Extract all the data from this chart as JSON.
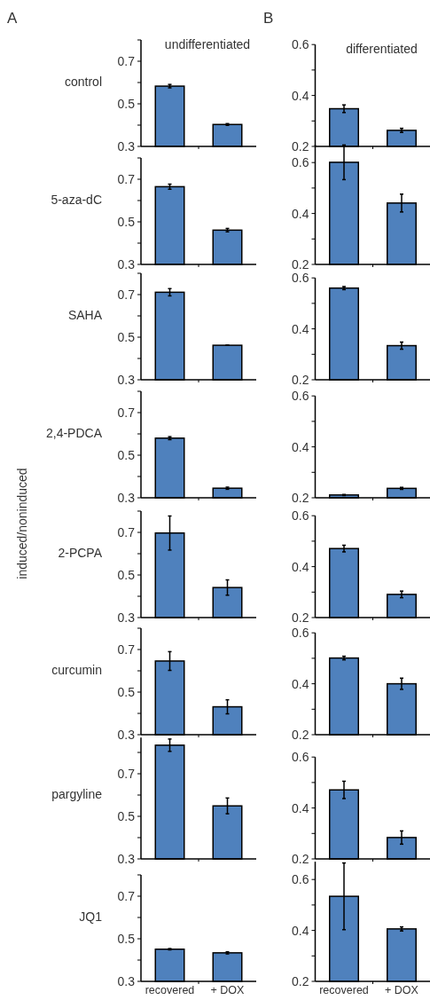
{
  "chart_data": [
    {
      "type": "bar",
      "title": "control",
      "annotations": [
        "A",
        "undifferentiated"
      ],
      "categories": [
        null,
        null
      ],
      "values": [
        0.583,
        0.403
      ],
      "errors": [
        0.008,
        0.004
      ],
      "color": "#4f81bd",
      "ylim": [
        0.3,
        0.8
      ],
      "yticks": [
        0.3,
        {
          "value": 0.4,
          "label": null
        },
        0.5,
        {
          "value": 0.6,
          "label": null
        },
        0.7,
        {
          "value": 0.8,
          "label": null
        }
      ]
    },
    {
      "type": "bar",
      "annotations": [
        "B",
        "differentiated"
      ],
      "categories": [
        null,
        null
      ],
      "values": [
        0.348,
        0.263
      ],
      "errors": [
        0.015,
        0.008
      ],
      "color": "#4f81bd",
      "ylim": [
        0.2,
        0.6
      ],
      "yticks": [
        0.2,
        {
          "value": 0.3,
          "label": null
        },
        0.4,
        {
          "value": 0.5,
          "label": null
        },
        0.6
      ]
    },
    {
      "type": "bar",
      "title": "5-aza-dC",
      "categories": [
        null,
        null
      ],
      "values": [
        0.665,
        0.461
      ],
      "errors": [
        0.012,
        0.008
      ],
      "color": "#4f81bd",
      "ylim": [
        0.3,
        0.8
      ],
      "yticks": [
        0.3,
        {
          "value": 0.4,
          "label": null
        },
        0.5,
        {
          "value": 0.6,
          "label": null
        },
        0.7,
        {
          "value": 0.8,
          "label": null
        }
      ]
    },
    {
      "type": "bar",
      "categories": [
        null,
        null
      ],
      "values": [
        0.601,
        0.441
      ],
      "errors": [
        0.068,
        0.035
      ],
      "color": "#4f81bd",
      "ylim": [
        0.2,
        0.67
      ],
      "yticks": [
        0.2,
        {
          "value": 0.3,
          "label": null
        },
        0.4,
        {
          "value": 0.5,
          "label": null
        },
        0.6
      ]
    },
    {
      "type": "bar",
      "title": "SAHA",
      "categories": [
        null,
        null
      ],
      "values": [
        0.711,
        0.462
      ],
      "errors": [
        0.017,
        0
      ],
      "color": "#4f81bd",
      "ylim": [
        0.3,
        0.8
      ],
      "yticks": [
        0.3,
        {
          "value": 0.4,
          "label": null
        },
        0.5,
        {
          "value": 0.6,
          "label": null
        },
        0.7,
        {
          "value": 0.8,
          "label": null
        }
      ]
    },
    {
      "type": "bar",
      "categories": [
        null,
        null
      ],
      "values": [
        0.56,
        0.334
      ],
      "errors": [
        0.006,
        0.014
      ],
      "color": "#4f81bd",
      "ylim": [
        0.2,
        0.6
      ],
      "yticks": [
        0.2,
        {
          "value": 0.3,
          "label": null
        },
        0.4,
        {
          "value": 0.5,
          "label": null
        },
        0.6
      ]
    },
    {
      "type": "bar",
      "title": "2,4-PDCA",
      "categories": [
        null,
        null
      ],
      "values": [
        0.58,
        0.345
      ],
      "errors": [
        0.007,
        0.005
      ],
      "color": "#4f81bd",
      "ylim": [
        0.3,
        0.8
      ],
      "yticks": [
        0.3,
        {
          "value": 0.4,
          "label": null
        },
        0.5,
        {
          "value": 0.6,
          "label": null
        },
        0.7,
        {
          "value": 0.8,
          "label": null
        }
      ]
    },
    {
      "type": "bar",
      "categories": [
        null,
        null
      ],
      "values": [
        0.211,
        0.237
      ],
      "errors": [
        0.002,
        0.004
      ],
      "color": "#4f81bd",
      "ylim": [
        0.2,
        0.6
      ],
      "yticks": [
        0.2,
        {
          "value": 0.3,
          "label": null
        },
        0.4,
        {
          "value": 0.5,
          "label": null
        },
        0.6
      ]
    },
    {
      "type": "bar",
      "title": "2-PCPA",
      "ylabel": "induced/noninduced",
      "categories": [
        null,
        null
      ],
      "values": [
        0.697,
        0.441
      ],
      "errors": [
        0.08,
        0.036
      ],
      "color": "#4f81bd",
      "ylim": [
        0.3,
        0.8
      ],
      "yticks": [
        0.3,
        {
          "value": 0.4,
          "label": null
        },
        0.5,
        {
          "value": 0.6,
          "label": null
        },
        0.7,
        {
          "value": 0.8,
          "label": null
        }
      ]
    },
    {
      "type": "bar",
      "categories": [
        null,
        null
      ],
      "values": [
        0.471,
        0.291
      ],
      "errors": [
        0.013,
        0.013
      ],
      "color": "#4f81bd",
      "ylim": [
        0.2,
        0.6
      ],
      "yticks": [
        0.2,
        {
          "value": 0.3,
          "label": null
        },
        0.4,
        {
          "value": 0.5,
          "label": null
        },
        0.6
      ]
    },
    {
      "type": "bar",
      "title": "curcumin",
      "categories": [
        null,
        null
      ],
      "values": [
        0.646,
        0.431
      ],
      "errors": [
        0.044,
        0.033
      ],
      "color": "#4f81bd",
      "ylim": [
        0.3,
        0.8
      ],
      "yticks": [
        0.3,
        {
          "value": 0.4,
          "label": null
        },
        0.5,
        {
          "value": 0.6,
          "label": null
        },
        0.7,
        {
          "value": 0.8,
          "label": null
        }
      ]
    },
    {
      "type": "bar",
      "categories": [
        null,
        null
      ],
      "values": [
        0.501,
        0.4
      ],
      "errors": [
        0.007,
        0.022
      ],
      "color": "#4f81bd",
      "ylim": [
        0.2,
        0.6
      ],
      "yticks": [
        0.2,
        {
          "value": 0.3,
          "label": null
        },
        0.4,
        {
          "value": 0.5,
          "label": null
        },
        0.6
      ]
    },
    {
      "type": "bar",
      "title": "pargyline",
      "categories": [
        null,
        null
      ],
      "values": [
        0.834,
        0.549
      ],
      "errors": [
        0.029,
        0.037
      ],
      "color": "#4f81bd",
      "ylim": [
        0.3,
        0.87
      ],
      "yticks": [
        0.3,
        {
          "value": 0.4,
          "label": null
        },
        0.5,
        {
          "value": 0.6,
          "label": null
        },
        0.7,
        {
          "value": 0.8,
          "label": null
        }
      ]
    },
    {
      "type": "bar",
      "categories": [
        null,
        null
      ],
      "values": [
        0.471,
        0.284
      ],
      "errors": [
        0.034,
        0.026
      ],
      "color": "#4f81bd",
      "ylim": [
        0.2,
        0.6
      ],
      "yticks": [
        0.2,
        {
          "value": 0.3,
          "label": null
        },
        0.4,
        {
          "value": 0.5,
          "label": null
        },
        0.6
      ]
    },
    {
      "type": "bar",
      "title": "JQ1",
      "categories": [
        "recovered",
        "+ DOX"
      ],
      "values": [
        0.451,
        0.434
      ],
      "errors": [
        0.003,
        0.005
      ],
      "color": "#4f81bd",
      "ylim": [
        0.3,
        0.8
      ],
      "yticks": [
        0.3,
        {
          "value": 0.4,
          "label": null
        },
        0.5,
        {
          "value": 0.6,
          "label": null
        },
        0.7,
        {
          "value": 0.8,
          "label": null
        }
      ]
    },
    {
      "type": "bar",
      "categories": [
        "recovered",
        "+ DOX"
      ],
      "values": [
        0.534,
        0.406
      ],
      "errors": [
        0.131,
        0.008
      ],
      "color": "#4f81bd",
      "ylim": [
        0.2,
        0.67
      ],
      "yticks": [
        0.2,
        {
          "value": 0.3,
          "label": null
        },
        0.4,
        {
          "value": 0.5,
          "label": null
        },
        0.6
      ]
    }
  ]
}
